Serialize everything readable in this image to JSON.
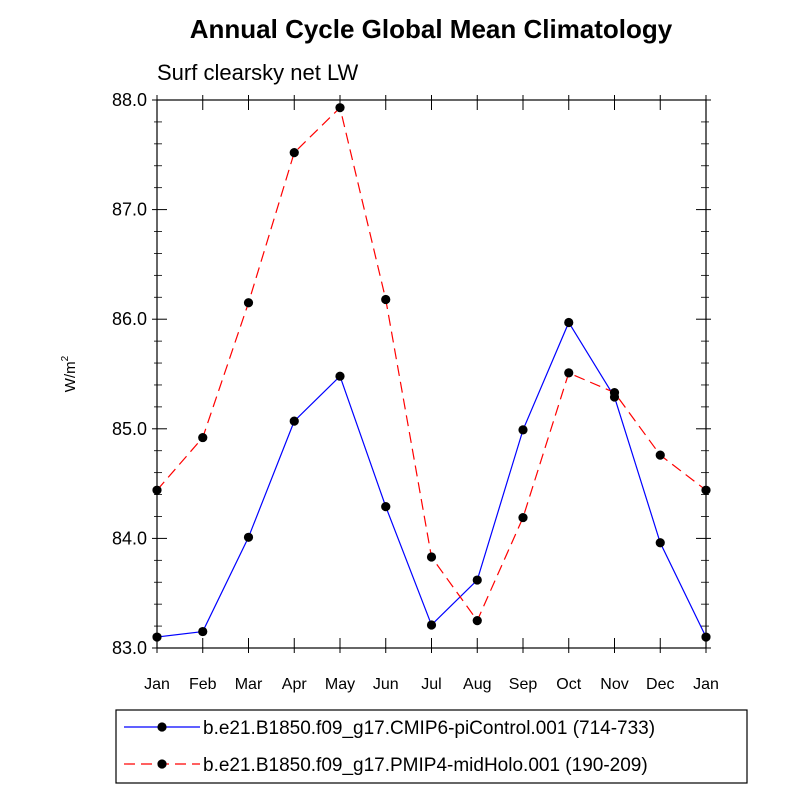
{
  "chart_data": {
    "type": "line",
    "title": "Annual Cycle Global Mean Climatology",
    "subtitle": "Surf clearsky net LW",
    "ylabel": "W/m",
    "ylabel_sup": "2",
    "xlabel": "",
    "categories": [
      "Jan",
      "Feb",
      "Mar",
      "Apr",
      "May",
      "Jun",
      "Jul",
      "Aug",
      "Sep",
      "Oct",
      "Nov",
      "Dec",
      "Jan"
    ],
    "ylim": [
      83.0,
      88.0
    ],
    "yticks": [
      83.0,
      84.0,
      85.0,
      86.0,
      87.0,
      88.0
    ],
    "ytick_labels": [
      "83.0",
      "84.0",
      "85.0",
      "86.0",
      "87.0",
      "88.0"
    ],
    "grid": false,
    "legend_position": "bottom",
    "series": [
      {
        "name": "b.e21.B1850.f09_g17.CMIP6-piControl.001 (714-733)",
        "color": "#0000ff",
        "dash": "solid",
        "values": [
          83.1,
          83.15,
          84.01,
          85.07,
          85.48,
          84.29,
          83.21,
          83.62,
          84.99,
          85.97,
          85.29,
          83.96,
          83.1
        ]
      },
      {
        "name": "b.e21.B1850.f09_g17.PMIP4-midHolo.001 (190-209)",
        "color": "#ff0000",
        "dash": "dashed",
        "values": [
          84.44,
          84.92,
          86.15,
          87.52,
          87.93,
          86.18,
          83.83,
          83.25,
          84.19,
          85.51,
          85.33,
          84.76,
          84.44
        ]
      }
    ]
  }
}
